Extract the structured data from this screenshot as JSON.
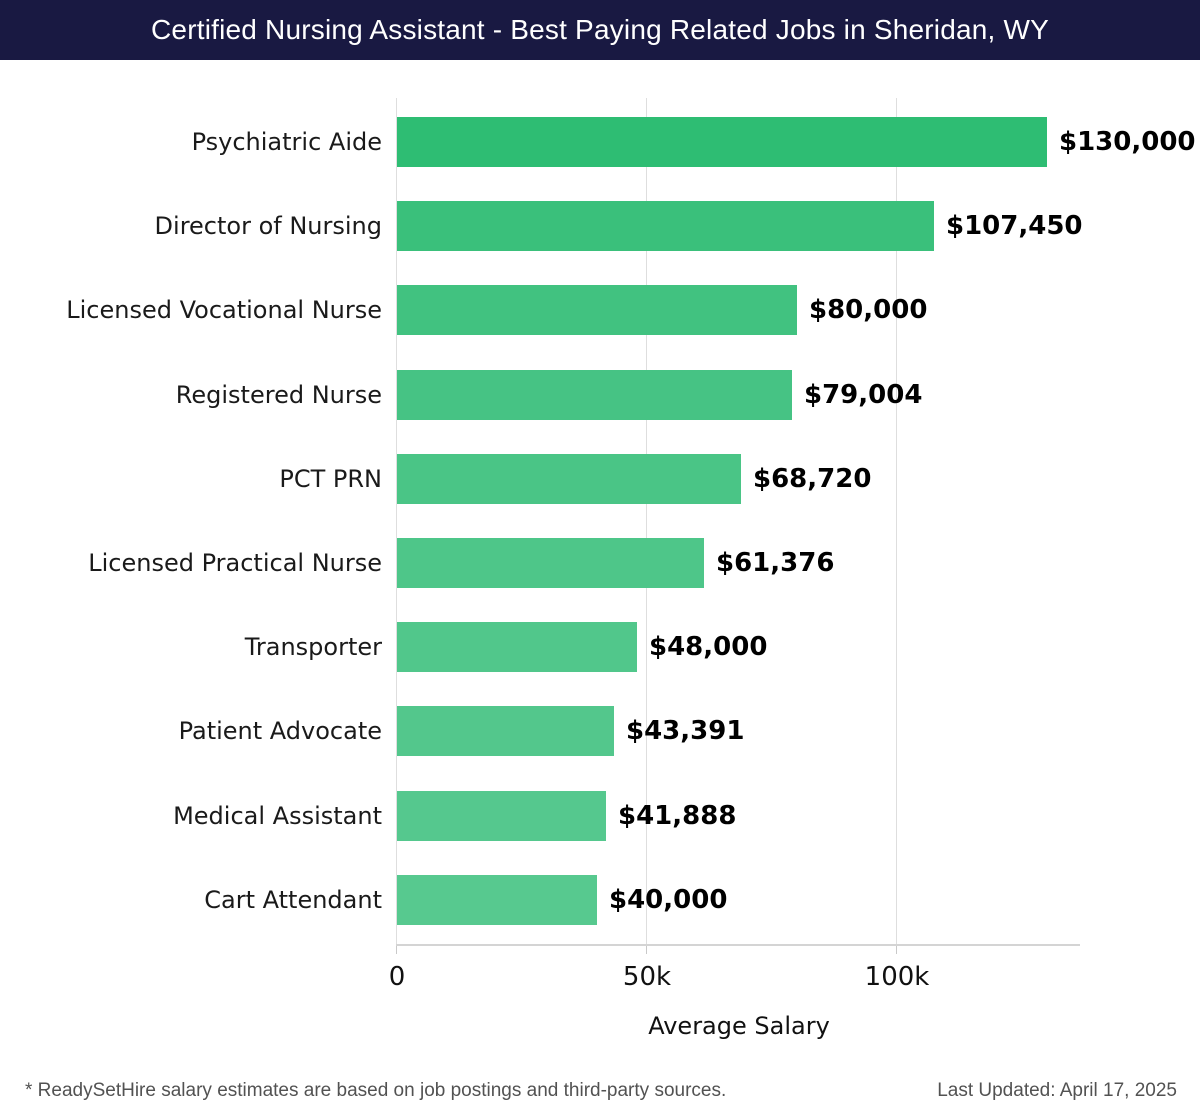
{
  "header": {
    "title": "Certified Nursing Assistant - Best Paying Related Jobs in Sheridan, WY",
    "bg_color": "#191942",
    "text_color": "#ffffff"
  },
  "chart_data": {
    "type": "bar",
    "orientation": "horizontal",
    "title": "Certified Nursing Assistant - Best Paying Related Jobs in Sheridan, WY",
    "categories": [
      "Psychiatric Aide",
      "Director of Nursing",
      "Licensed Vocational Nurse",
      "Registered Nurse",
      "PCT PRN",
      "Licensed Practical Nurse",
      "Transporter",
      "Patient Advocate",
      "Medical Assistant",
      "Cart Attendant"
    ],
    "values": [
      130000,
      107450,
      80000,
      79004,
      68720,
      61376,
      48000,
      43391,
      41888,
      40000
    ],
    "value_labels": [
      "$130,000",
      "$107,450",
      "$80,000",
      "$79,004",
      "$68,720",
      "$61,376",
      "$48,000",
      "$43,391",
      "$41,888",
      "$40,000"
    ],
    "bar_colors": [
      "#2ebd73",
      "#3ac07b",
      "#41c280",
      "#46c384",
      "#4ac586",
      "#4ec689",
      "#51c78b",
      "#53c78c",
      "#55c88e",
      "#57c98f"
    ],
    "xlabel": "Average Salary",
    "xlim": [
      0,
      137000
    ],
    "x_ticks": [
      {
        "value": 0,
        "label": "0"
      },
      {
        "value": 50000,
        "label": "50k"
      },
      {
        "value": 100000,
        "label": "100k"
      }
    ],
    "grid": true,
    "legend": false
  },
  "footer": {
    "disclaimer": "* ReadySetHire salary estimates are based on job postings and third-party sources.",
    "last_updated": "Last Updated: April 17, 2025"
  }
}
